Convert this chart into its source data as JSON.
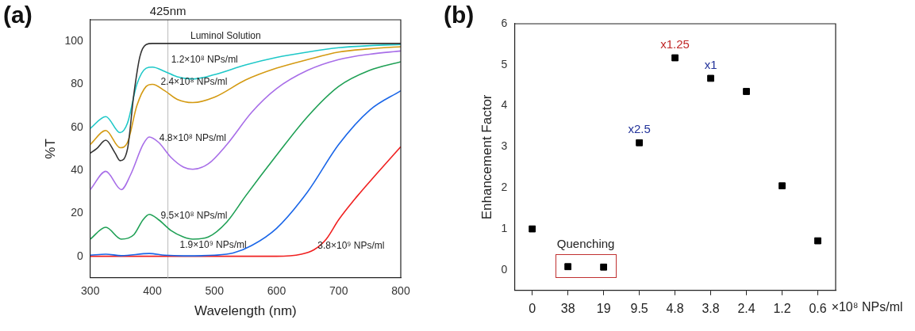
{
  "chart_data": [
    {
      "type": "line",
      "title": "(a)",
      "xlabel": "Wavelength (nm)",
      "ylabel": "%T",
      "xlim": [
        300,
        800
      ],
      "ylim": [
        -10,
        110
      ],
      "xticks": [
        300,
        400,
        500,
        600,
        700,
        800
      ],
      "yticks": [
        0,
        20,
        40,
        60,
        80,
        100
      ],
      "grid": false,
      "legend": false,
      "marker": "none",
      "line_style": "solid",
      "series": [
        {
          "name": "Luminol Solution",
          "color": "#333333",
          "x": [
            300,
            310,
            325,
            340,
            348,
            360,
            370,
            380,
            390,
            400,
            500,
            600,
            700,
            800
          ],
          "values": [
            48,
            50,
            54,
            48,
            44.5,
            50,
            75,
            93,
            98.5,
            99,
            99,
            99,
            99,
            99
          ]
        },
        {
          "name": "1.2×10⁸ NPs/ml",
          "color": "#1ec8c8",
          "x": [
            300,
            325,
            348,
            360,
            375,
            390,
            400,
            420,
            440,
            465,
            500,
            550,
            600,
            650,
            700,
            750,
            800
          ],
          "values": [
            59.5,
            65,
            57.5,
            62,
            80,
            87.5,
            88,
            86,
            83.5,
            82.5,
            84.5,
            89,
            92.5,
            95,
            97,
            98,
            98.5
          ]
        },
        {
          "name": "2.4×10⁸ NPs/ml",
          "color": "#d49a12",
          "x": [
            300,
            325,
            348,
            360,
            375,
            390,
            400,
            420,
            440,
            465,
            500,
            550,
            600,
            650,
            700,
            750,
            800
          ],
          "values": [
            52,
            58.5,
            50.5,
            53,
            70,
            79,
            80,
            77,
            73,
            71.5,
            74,
            82,
            87.5,
            91.5,
            95,
            96.5,
            97.5
          ]
        },
        {
          "name": "4.8×10⁸ NPs/ml",
          "color": "#a86ee8",
          "x": [
            300,
            325,
            350,
            365,
            385,
            395,
            410,
            430,
            450,
            465,
            490,
            520,
            560,
            600,
            650,
            700,
            750,
            800
          ],
          "values": [
            31,
            39.5,
            31,
            38,
            52,
            55.5,
            53,
            46,
            41.5,
            40.5,
            43,
            52,
            67,
            78,
            86.5,
            91.5,
            94,
            95.5
          ]
        },
        {
          "name": "9.5×10⁸ NPs/ml",
          "color": "#1fa055",
          "x": [
            300,
            325,
            350,
            370,
            385,
            395,
            410,
            430,
            450,
            465,
            490,
            520,
            550,
            600,
            650,
            700,
            750,
            800
          ],
          "values": [
            8,
            13.5,
            8,
            10,
            17,
            19.5,
            17,
            12,
            9,
            8,
            9,
            16,
            28,
            47,
            65,
            79,
            86.5,
            90.5
          ]
        },
        {
          "name": "1.9×10⁹ NPs/ml",
          "color": "#1a66e8",
          "x": [
            300,
            325,
            350,
            395,
            420,
            450,
            500,
            530,
            560,
            600,
            650,
            700,
            750,
            800
          ],
          "values": [
            0.5,
            1,
            0.3,
            1.3,
            0.5,
            0.2,
            0.5,
            1.5,
            5,
            13,
            30,
            52,
            68,
            77
          ]
        },
        {
          "name": "3.8×10⁹ NPs/ml",
          "color": "#f02020",
          "x": [
            300,
            600,
            640,
            660,
            680,
            700,
            730,
            760,
            800
          ],
          "values": [
            0,
            0,
            1,
            3,
            8,
            17,
            28,
            38,
            51
          ]
        }
      ],
      "ref_lines": [
        {
          "axis": "x",
          "value": 425,
          "label": "425nm",
          "color": "#bbbbbb"
        }
      ]
    },
    {
      "type": "scatter",
      "title": "(b)",
      "xlabel": "×10⁸ NPs/ml",
      "ylabel": "Enhancement Factor",
      "ylim": [
        -0.5,
        6
      ],
      "yticks": [
        0,
        1,
        2,
        3,
        4,
        5,
        6
      ],
      "grid": false,
      "legend": false,
      "marker": "square",
      "categories": [
        "0",
        "38",
        "19",
        "9.5",
        "4.8",
        "3.8",
        "2.4",
        "1.2",
        "0.6"
      ],
      "series": [
        {
          "color": "#000000",
          "values": [
            1.0,
            0.08,
            0.07,
            3.1,
            5.17,
            4.67,
            4.35,
            2.05,
            0.71
          ]
        }
      ],
      "annotations": [
        {
          "text": "x2.5",
          "x": "9.5",
          "y": 3.1
        },
        {
          "text": "x1.25",
          "x": "4.8",
          "y": 5.17
        },
        {
          "text": "x1",
          "x": "3.8",
          "y": 4.67
        },
        "Quenching"
      ]
    }
  ]
}
